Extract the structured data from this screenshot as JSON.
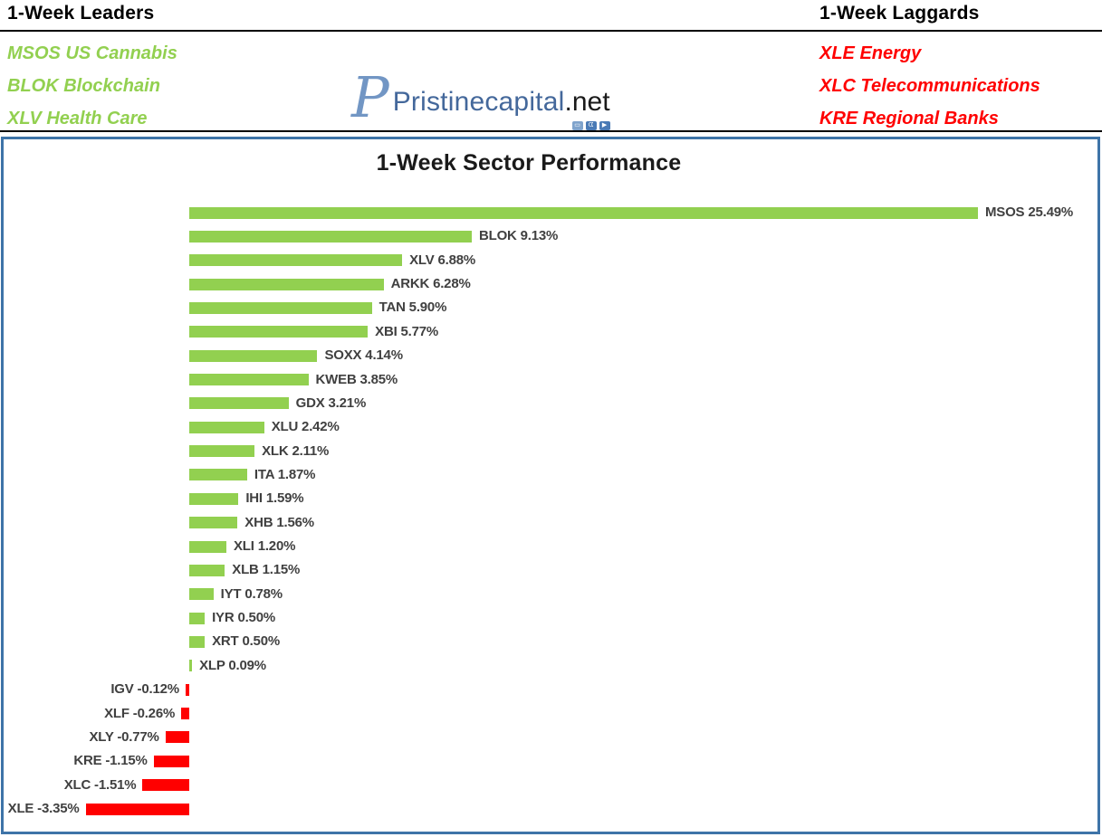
{
  "header": {
    "leaders": {
      "title": "1-Week Leaders",
      "items": [
        "MSOS US Cannabis",
        "BLOK Blockchain",
        "XLV Health Care"
      ]
    },
    "laggards": {
      "title": "1-Week Laggards",
      "items": [
        "XLE Energy",
        "XLC Telecommunications",
        "KRE Regional Banks"
      ]
    },
    "logo": {
      "monogram": "P",
      "brand": "Pristinecapital",
      "suffix": ".net"
    }
  },
  "chart_data": {
    "type": "bar",
    "orientation": "horizontal",
    "title": "1-Week Sector Performance",
    "categories": [
      "MSOS",
      "BLOK",
      "XLV",
      "ARKK",
      "TAN",
      "XBI",
      "SOXX",
      "KWEB",
      "GDX",
      "XLU",
      "XLK",
      "ITA",
      "IHI",
      "XHB",
      "XLI",
      "XLB",
      "IYT",
      "IYR",
      "XRT",
      "XLP",
      "IGV",
      "XLF",
      "XLY",
      "KRE",
      "XLC",
      "XLE"
    ],
    "values": [
      25.49,
      9.13,
      6.88,
      6.28,
      5.9,
      5.77,
      4.14,
      3.85,
      3.21,
      2.42,
      2.11,
      1.87,
      1.59,
      1.56,
      1.2,
      1.15,
      0.78,
      0.5,
      0.5,
      0.09,
      -0.12,
      -0.26,
      -0.77,
      -1.15,
      -1.51,
      -3.35
    ],
    "labels": [
      "MSOS 25.49%",
      "BLOK 9.13%",
      "XLV 6.88%",
      "ARKK 6.28%",
      "TAN 5.90%",
      "XBI 5.77%",
      "SOXX 4.14%",
      "KWEB 3.85%",
      "GDX 3.21%",
      "XLU 2.42%",
      "XLK 2.11%",
      "ITA 1.87%",
      "IHI 1.59%",
      "XHB 1.56%",
      "XLI 1.20%",
      "XLB 1.15%",
      "IYT 0.78%",
      "IYR 0.50%",
      "XRT 0.50%",
      "XLP 0.09%",
      "IGV -0.12%",
      "XLF -0.26%",
      "XLY -0.77%",
      "KRE -1.15%",
      "XLC -1.51%",
      "XLE -3.35%"
    ],
    "xlim": [
      -3.5,
      26
    ],
    "grid": false,
    "legend": "none",
    "positive_color": "#92D050",
    "negative_color": "#FF0000",
    "label_color": "#404040"
  },
  "colors": {
    "leaders_text": "#92D050",
    "laggards_text": "#FF0000",
    "chart_border": "#3E74A8",
    "header_rule": "#000000",
    "logo_blue": "#44689B"
  }
}
